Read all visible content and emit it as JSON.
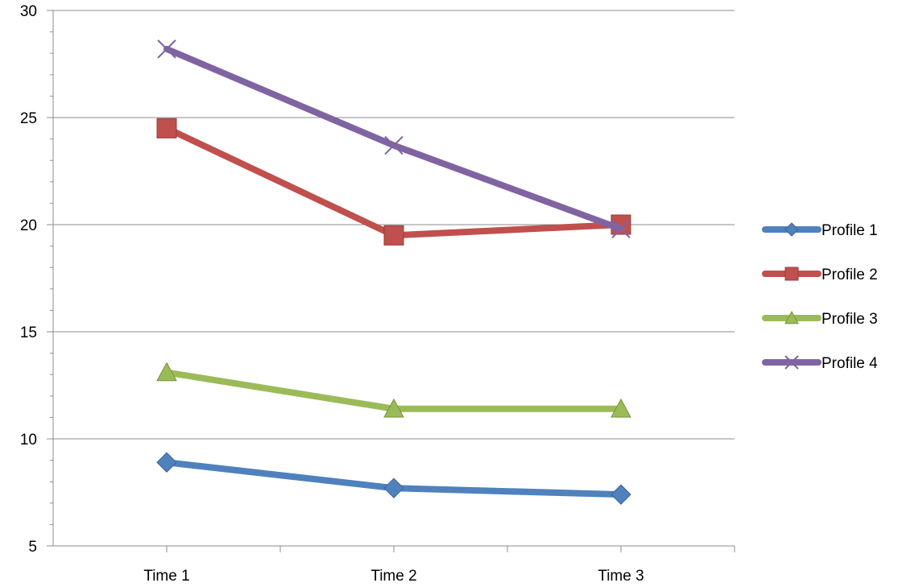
{
  "chart_data": {
    "type": "line",
    "title": "",
    "xlabel": "",
    "ylabel": "",
    "categories": [
      "Time 1",
      "Time 2",
      "Time 3"
    ],
    "ylim": [
      5,
      30
    ],
    "y_ticks": [
      "5",
      "10",
      "15",
      "20",
      "25",
      "30"
    ],
    "y_minor_tick_step": 1,
    "grid": "horizontal major gridlines",
    "legend_position": "right",
    "series": [
      {
        "name": "Profile 1",
        "values": [
          8.9,
          7.7,
          7.4
        ],
        "color": "#4f81bd",
        "marker": "diamond"
      },
      {
        "name": "Profile 2",
        "values": [
          24.5,
          19.5,
          20.0
        ],
        "color": "#c0504d",
        "marker": "square"
      },
      {
        "name": "Profile 3",
        "values": [
          13.1,
          11.4,
          11.4
        ],
        "color": "#9bbb59",
        "marker": "triangle"
      },
      {
        "name": "Profile 4",
        "values": [
          28.2,
          23.7,
          19.8
        ],
        "color": "#8064a2",
        "marker": "x"
      }
    ]
  }
}
